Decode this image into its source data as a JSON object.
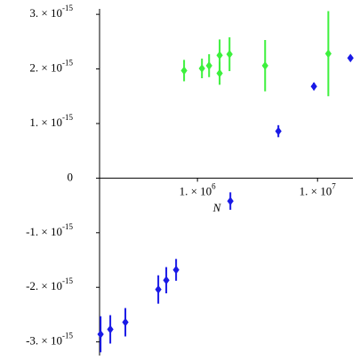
{
  "chart_data": {
    "type": "scatter",
    "x_label": "N",
    "log_x": true,
    "xlim": [
      153000,
      19700000
    ],
    "ylim": [
      -3.25e-15,
      3.1e-15
    ],
    "xticks": [
      {
        "value": 1000000,
        "label": "1. × 10",
        "exponent": "6"
      },
      {
        "value": 10000000,
        "label": "1. × 10",
        "exponent": "7"
      }
    ],
    "yticks": [
      {
        "value": 3e-15,
        "label": "3. × 10",
        "exponent": "-15"
      },
      {
        "value": 2e-15,
        "label": "2. × 10",
        "exponent": "-15"
      },
      {
        "value": 1e-15,
        "label": "1. × 10",
        "exponent": "-15"
      },
      0,
      {
        "value": -1e-15,
        "label": "-1. × 10",
        "exponent": "-15"
      },
      {
        "value": -2e-15,
        "label": "-2. × 10",
        "exponent": "-15"
      },
      {
        "value": -3e-15,
        "label": "-3. × 10",
        "exponent": "-15"
      }
    ],
    "series": [
      {
        "color": "#3df03d",
        "x": [
          774000,
          1090000,
          1250000,
          1530000,
          1530000,
          1850000,
          3660000,
          12300000
        ],
        "values": [
          1.97e-15,
          2.01e-15,
          2.06e-15,
          2.25e-15,
          1.92e-15,
          2.27e-15,
          2.06e-15,
          2.28e-15
        ],
        "errors": [
          1.96e-16,
          1.8e-16,
          2.1e-16,
          2.9e-16,
          2.1e-16,
          3.1e-16,
          4.7e-16,
          7.8e-16
        ]
      },
      {
        "color": "#1a1ae6",
        "x": [
          156000,
          188000,
          251000,
          472000,
          550000,
          664000,
          1880000,
          4720000,
          9330000,
          18800000
        ],
        "values": [
          -2.86e-15,
          -2.77e-15,
          -2.64e-15,
          -2.04e-15,
          -1.87e-15,
          -1.68e-15,
          -4.2e-16,
          8.6e-16,
          1.68e-15,
          2.2e-15
        ],
        "errors": [
          3.3e-16,
          2.6e-16,
          2.6e-16,
          2.6e-16,
          2.4e-16,
          2e-16,
          1.6e-16,
          1.1e-16,
          7e-17,
          5e-17
        ]
      }
    ]
  }
}
